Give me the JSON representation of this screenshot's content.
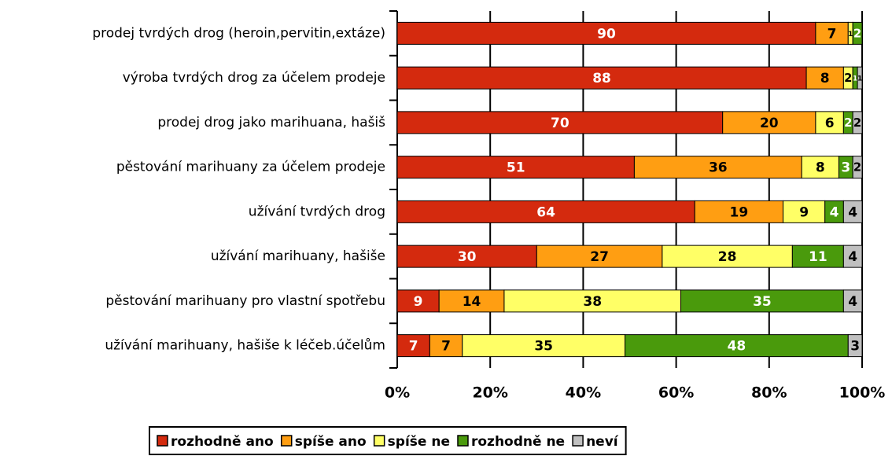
{
  "chart_data": {
    "type": "stacked-bar-horizontal",
    "categories": [
      "prodej tvrdých drog (heroin,pervitin,extáze)",
      "výroba tvrdých drog za účelem prodeje",
      "prodej drog jako marihuana, hašiš",
      "pěstování marihuany za účelem prodeje",
      "užívání tvrdých drog ",
      "užívání marihuany, hašiše",
      "pěstování marihuany pro vlastní spotřebu",
      "užívání marihuany, hašiše k léčeb.účelům"
    ],
    "series": [
      {
        "name": "rozhodně ano",
        "color": "#d42a0e",
        "values": [
          90,
          88,
          70,
          51,
          64,
          30,
          9,
          7
        ]
      },
      {
        "name": "spíše ano",
        "color": "#ff9e12",
        "values": [
          7,
          8,
          20,
          36,
          19,
          27,
          14,
          7
        ]
      },
      {
        "name": "spíše ne",
        "color": "#ffff66",
        "values": [
          1,
          2,
          6,
          8,
          9,
          28,
          38,
          35
        ]
      },
      {
        "name": "rozhodně ne",
        "color": "#4a9a0c",
        "values": [
          2,
          1,
          2,
          3,
          4,
          11,
          35,
          48
        ]
      },
      {
        "name": "neví",
        "color": "#c0c0c0",
        "values": [
          null,
          1,
          2,
          2,
          4,
          4,
          4,
          3
        ]
      }
    ],
    "xlim": [
      0,
      100
    ],
    "xticks": [
      {
        "value": 0,
        "label": "0%"
      },
      {
        "value": 20,
        "label": "20%"
      },
      {
        "value": 40,
        "label": "40%"
      },
      {
        "value": 60,
        "label": "60%"
      },
      {
        "value": 80,
        "label": "80%"
      },
      {
        "value": 100,
        "label": "100%"
      }
    ],
    "grid": true,
    "legend": "bottom"
  }
}
